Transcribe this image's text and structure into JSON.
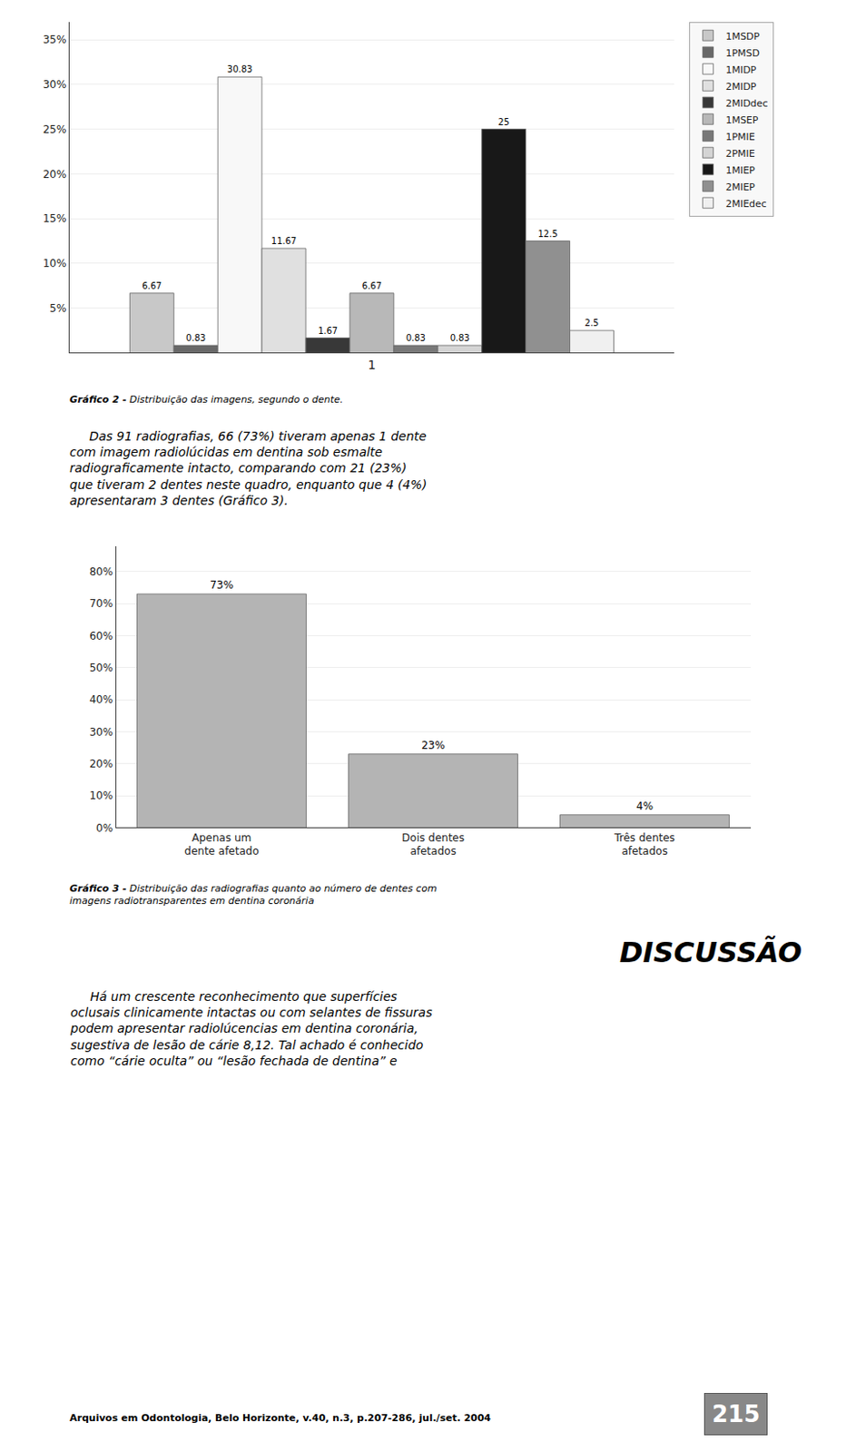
{
  "chart_data": [
    {
      "type": "bar",
      "xlabel": "1",
      "series": [
        {
          "name": "1MSDP",
          "color": "#c8c8c8",
          "values": [
            6.67
          ]
        },
        {
          "name": "1PMSD",
          "color": "#686868",
          "values": [
            0.83
          ]
        },
        {
          "name": "1MIDP",
          "color": "#f8f8f8",
          "values": [
            30.83
          ]
        },
        {
          "name": "2MIDP",
          "color": "#e0e0e0",
          "values": [
            11.67
          ]
        },
        {
          "name": "2MIDdec",
          "color": "#383838",
          "values": [
            1.67
          ]
        },
        {
          "name": "1MSEP",
          "color": "#b8b8b8",
          "values": [
            6.67
          ]
        },
        {
          "name": "1PMIE",
          "color": "#787878",
          "values": [
            0.83
          ]
        },
        {
          "name": "2PMIE",
          "color": "#d4d4d4",
          "values": [
            0.83
          ]
        },
        {
          "name": "1MIEP",
          "color": "#181818",
          "values": [
            25.0
          ]
        },
        {
          "name": "2MIEP",
          "color": "#909090",
          "values": [
            12.5
          ]
        },
        {
          "name": "2MIEdec",
          "color": "#f0f0f0",
          "values": [
            2.5
          ]
        }
      ],
      "ylim": [
        0,
        37
      ],
      "yticks": [
        {
          "value": 5,
          "label": "5%"
        },
        {
          "value": 10,
          "label": "10%"
        },
        {
          "value": 15,
          "label": "15%"
        },
        {
          "value": 20,
          "label": "20%"
        },
        {
          "value": 25,
          "label": "25%"
        },
        {
          "value": 30,
          "label": "30%"
        },
        {
          "value": 35,
          "label": "35%"
        }
      ],
      "grid": true,
      "legend": "right",
      "data_labels": true,
      "tick_labels": "y",
      "annotations": [
        "Gráfico 2 -",
        "Distribuição das imagens, segundo o dente."
      ]
    },
    {
      "type": "bar",
      "categories": [
        "Apenas um\ndente afetado",
        "Dois dentes\nafetados",
        "Três dentes\nafetados"
      ],
      "values": [
        73,
        23,
        4
      ],
      "value_labels": [
        "73%",
        "23%",
        "4%"
      ],
      "color": "#b4b4b4",
      "ylim": [
        0,
        88
      ],
      "yticks": [
        {
          "value": 0,
          "label": "0%"
        },
        {
          "value": 10,
          "label": "10%"
        },
        {
          "value": 20,
          "label": "20%"
        },
        {
          "value": 30,
          "label": "30%"
        },
        {
          "value": 40,
          "label": "40%"
        },
        {
          "value": 50,
          "label": "50%"
        },
        {
          "value": 60,
          "label": "60%"
        },
        {
          "value": 70,
          "label": "70%"
        },
        {
          "value": 80,
          "label": "80%"
        }
      ],
      "grid": true,
      "data_labels": true,
      "annotations": [
        "Gráfico 3 -",
        "Distribuição das radiografias quanto ao número de dentes com\nimagens radiotransparentes em dentina coronária"
      ]
    }
  ],
  "annotations": [
    "     Das 91 radiografias, 66 (73%) tiveram apenas 1 dente\ncom imagem radiolúcidas em dentina sob esmalte\nradiograficamente intacto, comparando com 21 (23%)\nque tiveram 2 dentes neste quadro, enquanto que 4 (4%)\napresentaram 3 dentes (Gráfico 3).",
    "DISCUSSÃO",
    "     Há um crescente reconhecimento que superfícies\noclusais clinicamente intactas ou com selantes de fissuras\npodem apresentar radiolúcencias em dentina coronária,\nsugestiva de lesão de cárie 8,12. Tal achado é conhecido\ncomo “cárie oculta” ou “lesão fechada de dentina” e",
    "Arquivos em Odontologia, Belo Horizonte, v.40, n.3, p.207-286, jul./set. 2004",
    "215"
  ]
}
